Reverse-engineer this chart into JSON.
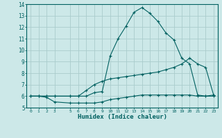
{
  "xlabel": "Humidex (Indice chaleur)",
  "bg_color": "#cce8e8",
  "grid_color": "#aacccc",
  "line_color": "#006060",
  "xmin": -0.5,
  "xmax": 23.5,
  "ymin": 5,
  "ymax": 14,
  "x_ticks": [
    0,
    1,
    2,
    3,
    5,
    6,
    7,
    8,
    9,
    10,
    11,
    12,
    13,
    14,
    15,
    16,
    17,
    18,
    19,
    20,
    21,
    22,
    23
  ],
  "y_ticks": [
    5,
    6,
    7,
    8,
    9,
    10,
    11,
    12,
    13,
    14
  ],
  "curve1_x": [
    0,
    1,
    2,
    3,
    5,
    6,
    7,
    8,
    9,
    10,
    11,
    12,
    13,
    14,
    15,
    16,
    17,
    18,
    19,
    20,
    21,
    22,
    23
  ],
  "curve1_y": [
    6.0,
    6.0,
    6.0,
    6.0,
    6.0,
    6.0,
    6.0,
    6.3,
    6.4,
    9.5,
    11.0,
    12.1,
    13.3,
    13.7,
    13.2,
    12.5,
    11.5,
    10.9,
    9.3,
    8.8,
    6.1,
    6.0,
    6.0
  ],
  "curve2_x": [
    0,
    1,
    2,
    3,
    5,
    6,
    7,
    8,
    9,
    10,
    11,
    12,
    13,
    14,
    15,
    16,
    17,
    18,
    19,
    20,
    21,
    22,
    23
  ],
  "curve2_y": [
    6.0,
    6.0,
    6.0,
    6.0,
    6.0,
    6.0,
    6.5,
    7.0,
    7.3,
    7.5,
    7.6,
    7.7,
    7.8,
    7.9,
    8.0,
    8.1,
    8.3,
    8.5,
    8.8,
    9.3,
    8.8,
    8.5,
    6.1
  ],
  "curve3_x": [
    0,
    1,
    2,
    3,
    5,
    6,
    7,
    8,
    9,
    10,
    11,
    12,
    13,
    14,
    15,
    16,
    17,
    18,
    19,
    20,
    21,
    22,
    23
  ],
  "curve3_y": [
    6.0,
    6.0,
    5.9,
    5.5,
    5.4,
    5.4,
    5.4,
    5.4,
    5.5,
    5.7,
    5.8,
    5.9,
    6.0,
    6.1,
    6.1,
    6.1,
    6.1,
    6.1,
    6.1,
    6.1,
    6.0,
    6.0,
    6.1
  ]
}
